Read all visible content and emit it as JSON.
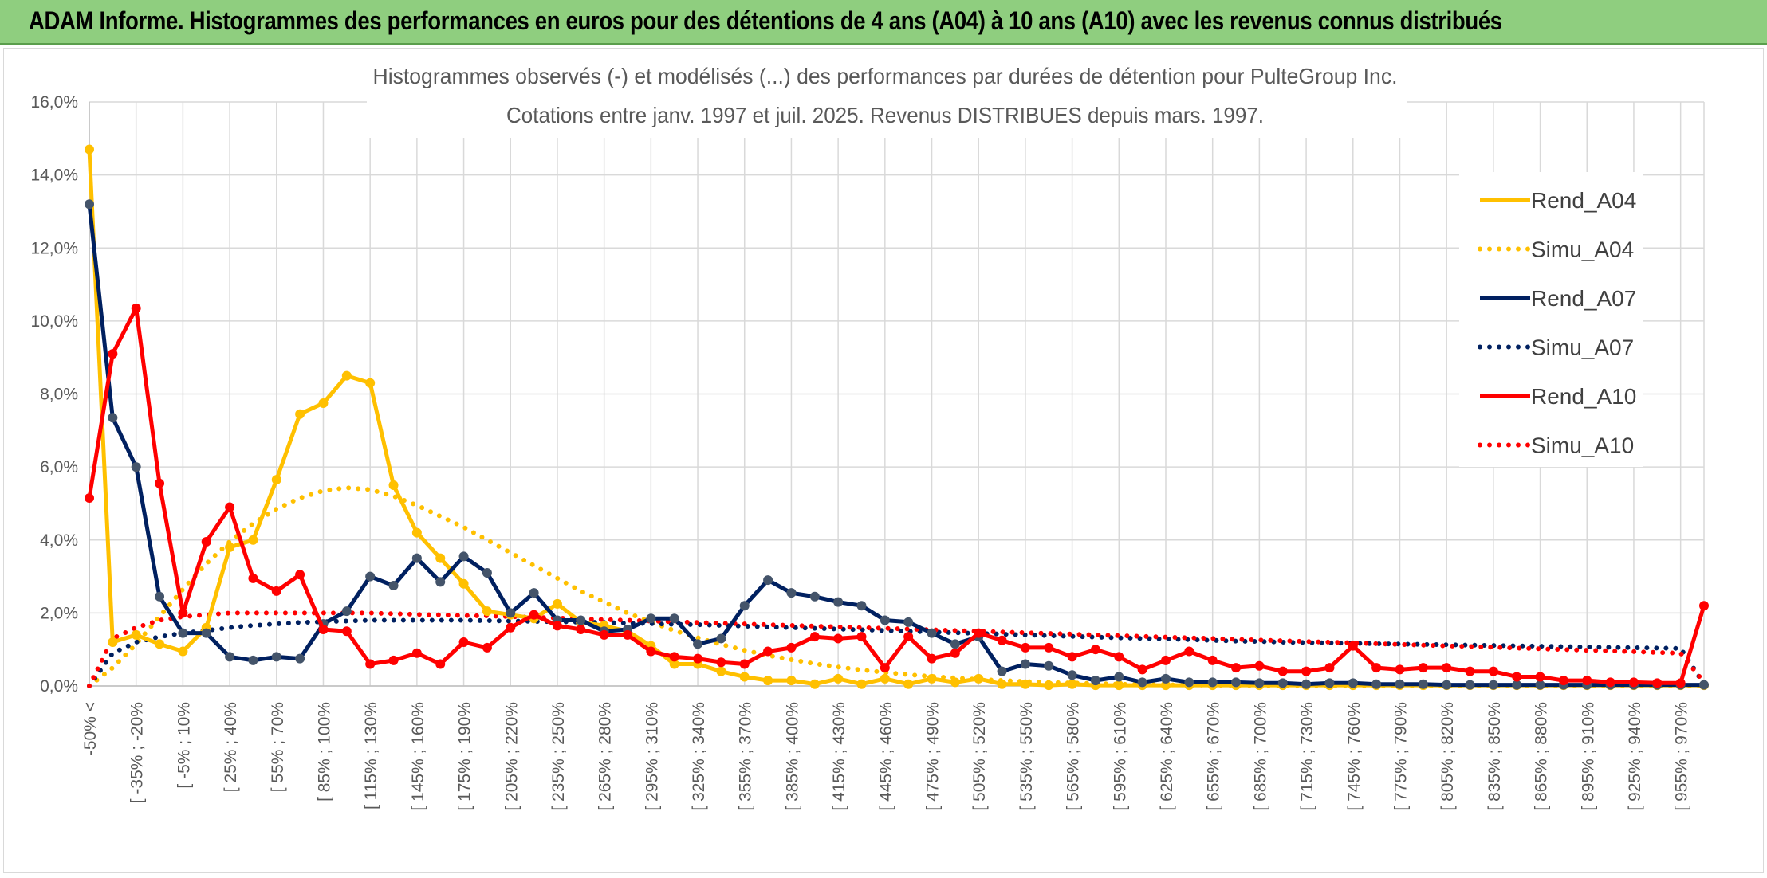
{
  "banner": {
    "title": "ADAM Informe. Histogrammes des performances en euros pour des détentions de 4 ans (A04) à 10 ans (A10) avec les revenus connus distribués"
  },
  "chart_data": {
    "type": "line",
    "title": "Histogrammes observés (-) et modélisés (...) des performances par durées de détention pour PulteGroup Inc.",
    "subtitle": "Cotations entre janv. 1997 et juil. 2025. Revenus DISTRIBUES depuis mars. 1997.",
    "xlabel": "",
    "ylabel": "",
    "ylim": [
      0,
      16
    ],
    "y_ticks": [
      "0,0%",
      "2,0%",
      "4,0%",
      "6,0%",
      "8,0%",
      "10,0%",
      "12,0%",
      "14,0%",
      "16,0%"
    ],
    "grid": true,
    "legend_position": "right",
    "x_tick_labels": [
      "-50% <",
      "[ -35% ; -20%",
      "[ -5% ; 10%",
      "[ 25% ; 40%",
      "[ 55% ; 70%",
      "[ 85% ; 100%",
      "[ 115% ; 130%",
      "[ 145% ; 160%",
      "[ 175% ; 190%",
      "[ 205% ; 220%",
      "[ 235% ; 250%",
      "[ 265% ; 280%",
      "[ 295% ; 310%",
      "[ 325% ; 340%",
      "[ 355% ; 370%",
      "[ 385% ; 400%",
      "[ 415% ; 430%",
      "[ 445% ; 460%",
      "[ 475% ; 490%",
      "[ 505% ; 520%",
      "[ 535% ; 550%",
      "[ 565% ; 580%",
      "[ 595% ; 610%",
      "[ 625% ; 640%",
      "[ 655% ; 670%",
      "[ 685% ; 700%",
      "[ 715% ; 730%",
      "[ 745% ; 760%",
      "[ 775% ; 790%",
      "[ 805% ; 820%",
      "[ 835% ; 850%",
      "[ 865% ; 880%",
      "[ 895% ; 910%",
      "[ 925% ; 940%",
      "[ 955% ; 970%"
    ],
    "colors": {
      "A04": "#ffc000",
      "A07": "#002060",
      "A07_marker": "#44546a",
      "A10": "#ff0000"
    },
    "series": [
      {
        "name": "Rend_A04",
        "style": "solid",
        "color": "#ffc000",
        "values": [
          14.7,
          1.2,
          1.4,
          1.15,
          0.95,
          1.6,
          3.8,
          4.0,
          5.65,
          7.45,
          7.75,
          8.5,
          8.3,
          5.5,
          4.2,
          3.5,
          2.8,
          2.05,
          1.95,
          1.85,
          2.25,
          1.75,
          1.65,
          1.5,
          1.1,
          0.6,
          0.6,
          0.4,
          0.25,
          0.15,
          0.15,
          0.05,
          0.2,
          0.05,
          0.2,
          0.05,
          0.2,
          0.1,
          0.2,
          0.05,
          0.05,
          0.02,
          0.05,
          0.02,
          0.02,
          0.02,
          0.02,
          0.02,
          0.02,
          0.02,
          0.02,
          0.02,
          0.02,
          0.02,
          0.02,
          0.02,
          0.02,
          0.02,
          0.02,
          0.02,
          0.02,
          0.02,
          0.02,
          0.02,
          0.02,
          0.02,
          0.02,
          0.02,
          0.02,
          0.02
        ]
      },
      {
        "name": "Simu_A04",
        "style": "dotted",
        "color": "#ffc000",
        "values": [
          0.0,
          0.5,
          1.15,
          1.9,
          2.65,
          3.35,
          3.95,
          4.45,
          4.85,
          5.15,
          5.35,
          5.43,
          5.38,
          5.2,
          4.95,
          4.65,
          4.35,
          4.0,
          3.65,
          3.3,
          2.95,
          2.6,
          2.3,
          2.0,
          1.75,
          1.52,
          1.32,
          1.14,
          0.98,
          0.84,
          0.72,
          0.61,
          0.52,
          0.44,
          0.37,
          0.31,
          0.26,
          0.22,
          0.18,
          0.15,
          0.12,
          0.1,
          0.08,
          0.07,
          0.05,
          0.04,
          0.03,
          0.03,
          0.02,
          0.02,
          0.01,
          0.01,
          0.01,
          0.01,
          0.01,
          0.0,
          0.0,
          0.0,
          0.0,
          0.0,
          0.0,
          0.0,
          0.0,
          0.0,
          0.0,
          0.0,
          0.0,
          0.0,
          0.0,
          0.0
        ]
      },
      {
        "name": "Rend_A07",
        "style": "solid",
        "color": "#002060",
        "values": [
          13.2,
          7.35,
          6.0,
          2.45,
          1.45,
          1.45,
          0.8,
          0.7,
          0.8,
          0.75,
          1.7,
          2.05,
          3.0,
          2.75,
          3.5,
          2.85,
          3.55,
          3.1,
          2.0,
          2.55,
          1.8,
          1.8,
          1.5,
          1.55,
          1.85,
          1.85,
          1.15,
          1.3,
          2.2,
          2.9,
          2.55,
          2.45,
          2.3,
          2.2,
          1.8,
          1.75,
          1.45,
          1.15,
          1.35,
          0.4,
          0.6,
          0.55,
          0.3,
          0.15,
          0.25,
          0.1,
          0.2,
          0.1,
          0.1,
          0.1,
          0.08,
          0.08,
          0.05,
          0.08,
          0.08,
          0.05,
          0.05,
          0.05,
          0.03,
          0.03,
          0.03,
          0.03,
          0.03,
          0.03,
          0.03,
          0.03,
          0.03,
          0.03,
          0.03,
          0.03
        ]
      },
      {
        "name": "Simu_A07",
        "style": "dotted",
        "color": "#002060",
        "values": [
          0.0,
          0.9,
          1.2,
          1.35,
          1.45,
          1.52,
          1.6,
          1.66,
          1.7,
          1.74,
          1.76,
          1.78,
          1.8,
          1.8,
          1.8,
          1.8,
          1.8,
          1.79,
          1.78,
          1.77,
          1.76,
          1.75,
          1.74,
          1.72,
          1.71,
          1.69,
          1.68,
          1.66,
          1.64,
          1.62,
          1.6,
          1.58,
          1.56,
          1.54,
          1.52,
          1.5,
          1.48,
          1.46,
          1.44,
          1.42,
          1.4,
          1.38,
          1.36,
          1.34,
          1.32,
          1.3,
          1.29,
          1.27,
          1.25,
          1.23,
          1.22,
          1.2,
          1.19,
          1.18,
          1.17,
          1.16,
          1.15,
          1.14,
          1.13,
          1.12,
          1.11,
          1.1,
          1.09,
          1.08,
          1.07,
          1.06,
          1.05,
          1.04,
          1.03,
          0.05
        ]
      },
      {
        "name": "Rend_A10",
        "style": "solid",
        "color": "#ff0000",
        "values": [
          5.15,
          9.1,
          10.35,
          5.55,
          2.0,
          3.95,
          4.9,
          2.95,
          2.6,
          3.05,
          1.55,
          1.5,
          0.6,
          0.7,
          0.9,
          0.6,
          1.2,
          1.05,
          1.6,
          1.95,
          1.65,
          1.55,
          1.4,
          1.4,
          0.95,
          0.8,
          0.75,
          0.65,
          0.6,
          0.95,
          1.05,
          1.35,
          1.3,
          1.35,
          0.5,
          1.35,
          0.75,
          0.9,
          1.45,
          1.25,
          1.05,
          1.05,
          0.8,
          1.0,
          0.8,
          0.45,
          0.7,
          0.95,
          0.7,
          0.5,
          0.55,
          0.4,
          0.4,
          0.5,
          1.1,
          0.5,
          0.45,
          0.5,
          0.5,
          0.4,
          0.4,
          0.25,
          0.25,
          0.15,
          0.15,
          0.1,
          0.1,
          0.08,
          0.08,
          2.2
        ]
      },
      {
        "name": "Simu_A10",
        "style": "dotted",
        "color": "#ff0000",
        "values": [
          0.0,
          1.3,
          1.6,
          1.8,
          1.9,
          1.95,
          2.0,
          2.0,
          2.0,
          2.0,
          2.0,
          2.0,
          2.0,
          1.98,
          1.96,
          1.95,
          1.93,
          1.92,
          1.9,
          1.88,
          1.86,
          1.84,
          1.82,
          1.8,
          1.78,
          1.76,
          1.74,
          1.72,
          1.7,
          1.68,
          1.66,
          1.64,
          1.62,
          1.6,
          1.58,
          1.56,
          1.54,
          1.52,
          1.5,
          1.48,
          1.46,
          1.44,
          1.42,
          1.4,
          1.38,
          1.36,
          1.34,
          1.32,
          1.3,
          1.28,
          1.26,
          1.24,
          1.22,
          1.2,
          1.18,
          1.16,
          1.14,
          1.12,
          1.1,
          1.08,
          1.06,
          1.04,
          1.02,
          1.0,
          0.98,
          0.96,
          0.94,
          0.92,
          0.9,
          0.1
        ]
      }
    ]
  }
}
